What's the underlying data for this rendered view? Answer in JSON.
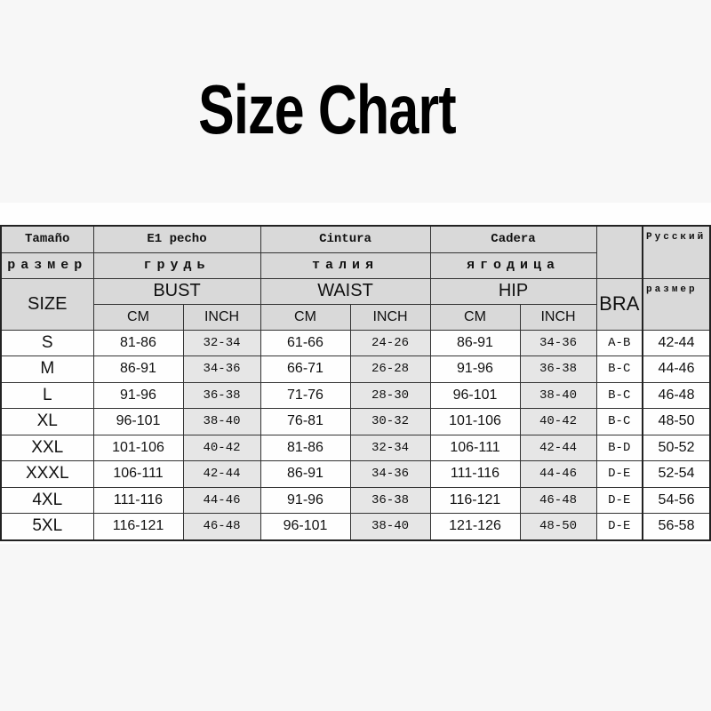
{
  "title": "Size Chart",
  "header": {
    "row1": [
      "Tamaño",
      "E1 pecho",
      "Cintura",
      "Cadera"
    ],
    "row2": [
      "размер",
      "грудь",
      "талия",
      "ягодица"
    ],
    "russian_top": "Русский",
    "russian_bottom": "размер",
    "size": "SIZE",
    "bust": "BUST",
    "waist": "WAIST",
    "hip": "HIP",
    "bra": "BRA",
    "cm": "CM",
    "inch": "INCH"
  },
  "rows": [
    {
      "size": "S",
      "bust_cm": "81-86",
      "bust_in": "32-34",
      "waist_cm": "61-66",
      "waist_in": "24-26",
      "hip_cm": "86-91",
      "hip_in": "34-36",
      "bra": "A-B",
      "ru": "42-44"
    },
    {
      "size": "M",
      "bust_cm": "86-91",
      "bust_in": "34-36",
      "waist_cm": "66-71",
      "waist_in": "26-28",
      "hip_cm": "91-96",
      "hip_in": "36-38",
      "bra": "B-C",
      "ru": "44-46"
    },
    {
      "size": "L",
      "bust_cm": "91-96",
      "bust_in": "36-38",
      "waist_cm": "71-76",
      "waist_in": "28-30",
      "hip_cm": "96-101",
      "hip_in": "38-40",
      "bra": "B-C",
      "ru": "46-48"
    },
    {
      "size": "XL",
      "bust_cm": "96-101",
      "bust_in": "38-40",
      "waist_cm": "76-81",
      "waist_in": "30-32",
      "hip_cm": "101-106",
      "hip_in": "40-42",
      "bra": "B-C",
      "ru": "48-50"
    },
    {
      "size": "XXL",
      "bust_cm": "101-106",
      "bust_in": "40-42",
      "waist_cm": "81-86",
      "waist_in": "32-34",
      "hip_cm": "106-111",
      "hip_in": "42-44",
      "bra": "B-D",
      "ru": "50-52"
    },
    {
      "size": "XXXL",
      "bust_cm": "106-111",
      "bust_in": "42-44",
      "waist_cm": "86-91",
      "waist_in": "34-36",
      "hip_cm": "111-116",
      "hip_in": "44-46",
      "bra": "D-E",
      "ru": "52-54"
    },
    {
      "size": "4XL",
      "bust_cm": "111-116",
      "bust_in": "44-46",
      "waist_cm": "91-96",
      "waist_in": "36-38",
      "hip_cm": "116-121",
      "hip_in": "46-48",
      "bra": "D-E",
      "ru": "54-56"
    },
    {
      "size": "5XL",
      "bust_cm": "116-121",
      "bust_in": "46-48",
      "waist_cm": "96-101",
      "waist_in": "38-40",
      "hip_cm": "121-126",
      "hip_in": "48-50",
      "bra": "D-E",
      "ru": "56-58"
    }
  ]
}
